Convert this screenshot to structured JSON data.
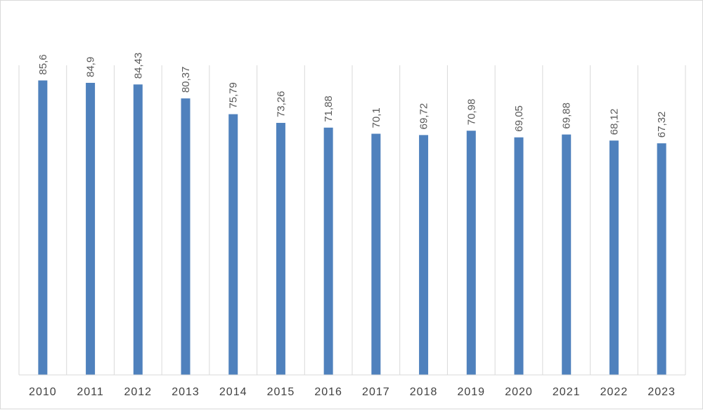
{
  "chart_data": {
    "type": "bar",
    "categories": [
      "2010",
      "2011",
      "2012",
      "2013",
      "2014",
      "2015",
      "2016",
      "2017",
      "2018",
      "2019",
      "2020",
      "2021",
      "2022",
      "2023"
    ],
    "values": [
      85.6,
      84.9,
      84.43,
      80.37,
      75.79,
      73.26,
      71.88,
      70.1,
      69.72,
      70.98,
      69.05,
      69.88,
      68.12,
      67.32
    ],
    "data_labels": [
      "85,6",
      "84,9",
      "84,43",
      "80,37",
      "75,79",
      "73,26",
      "71,88",
      "70,1",
      "69,72",
      "70,98",
      "69,05",
      "69,88",
      "68,12",
      "67,32"
    ],
    "title": "",
    "xlabel": "",
    "ylabel": "",
    "ylim": [
      0,
      90
    ],
    "grid": "vertical",
    "legend": "none",
    "bar_color": "#4f81bd",
    "grid_color": "#d9d9d9",
    "text_color": "#595959"
  }
}
